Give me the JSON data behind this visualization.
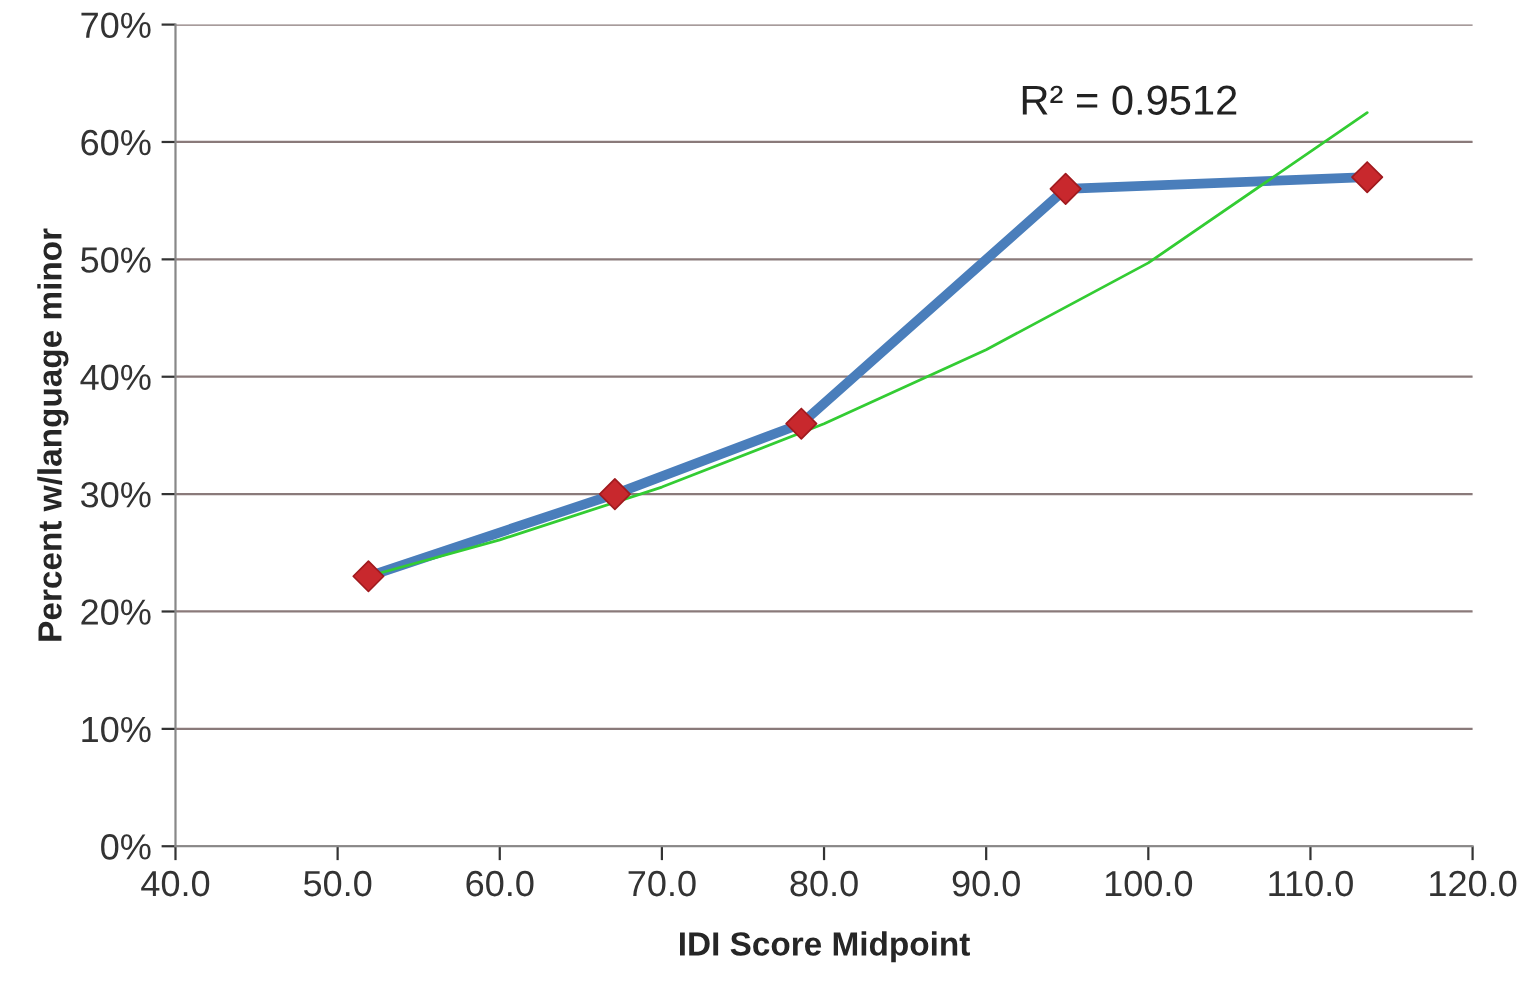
{
  "chart_data": {
    "type": "line",
    "xlabel": "IDI Score Midpoint",
    "ylabel": "Percent w/language minor",
    "x": [
      51.9,
      67.1,
      78.6,
      94.9,
      113.5
    ],
    "series": [
      {
        "color": "#4a7ebb",
        "values": [
          23,
          30,
          36,
          56,
          57
        ],
        "marker": "none",
        "line_style": "solid"
      },
      {
        "type": "scatter",
        "color": "#c8282d",
        "values": [
          23,
          30,
          36,
          56,
          57
        ],
        "marker": "diamond"
      },
      {
        "color": "#33cc33",
        "x": [
          51.9,
          60,
          70,
          80,
          90,
          100,
          113.5
        ],
        "values": [
          23,
          26.1,
          30.6,
          36,
          42.3,
          49.7,
          62.5
        ],
        "marker": "none",
        "line_style": "solid"
      }
    ],
    "xlim": [
      40,
      120
    ],
    "xticks": [
      {
        "value": 40,
        "label": "40.0"
      },
      {
        "value": 50,
        "label": "50.0"
      },
      {
        "value": 60,
        "label": "60.0"
      },
      {
        "value": 70,
        "label": "70.0"
      },
      {
        "value": 80,
        "label": "80.0"
      },
      {
        "value": 90,
        "label": "90.0"
      },
      {
        "value": 100,
        "label": "100.0"
      },
      {
        "value": 110,
        "label": "110.0"
      },
      {
        "value": 120,
        "label": "120.0"
      }
    ],
    "ylim": [
      0,
      70
    ],
    "yticks": [
      {
        "value": 0,
        "label": "0%"
      },
      {
        "value": 10,
        "label": "10%"
      },
      {
        "value": 20,
        "label": "20%"
      },
      {
        "value": 30,
        "label": "30%"
      },
      {
        "value": 40,
        "label": "40%"
      },
      {
        "value": 50,
        "label": "50%"
      },
      {
        "value": 60,
        "label": "60%"
      },
      {
        "value": 70,
        "label": "70%"
      }
    ],
    "grid": "y",
    "annotations": [
      "R² = 0.9512"
    ]
  }
}
